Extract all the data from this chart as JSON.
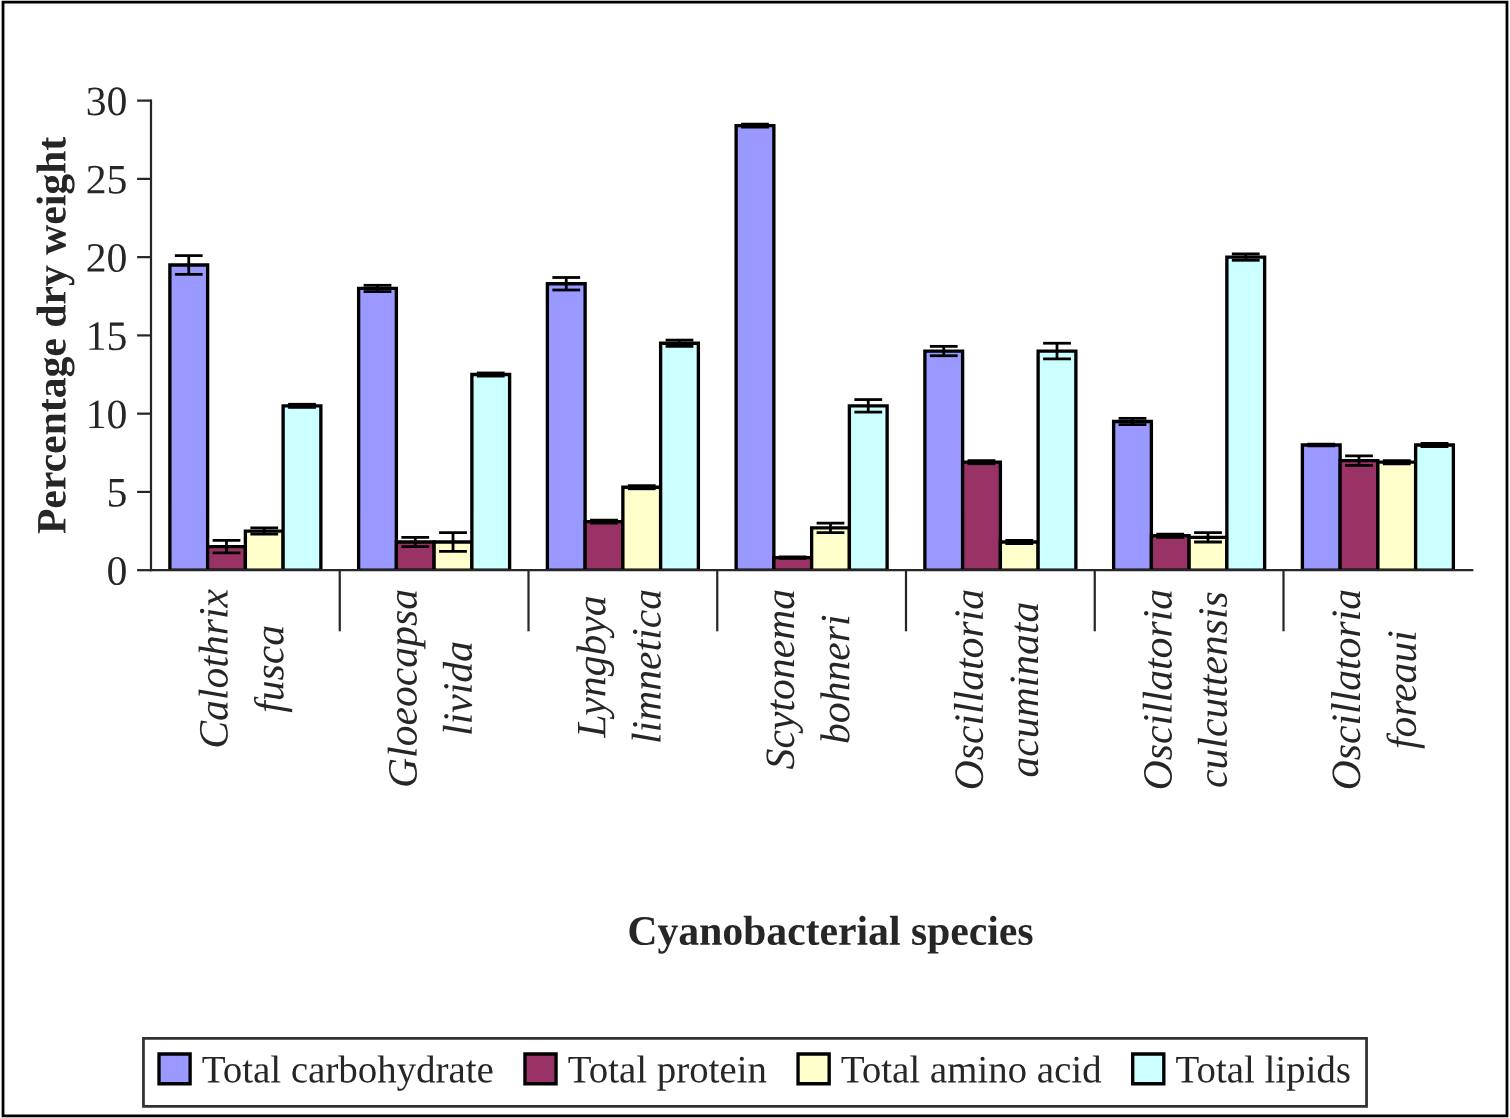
{
  "chart_data": {
    "type": "bar",
    "xlabel": "Cyanobacterial species",
    "ylabel": "Percentage dry weight",
    "categories": [
      "Calothrix\nfusca",
      "Gloeocapsa\nlivida",
      "Lyngbya\nlimnetica",
      "Scytonema\nbohneri",
      "Oscillatoria\nacuminata",
      "Oscillatoria\nculcuttensis",
      "Oscillatoria\nforeaui"
    ],
    "series": [
      {
        "name": "Total carbohydrate",
        "color": "#9999ff",
        "values": [
          19.5,
          18,
          18.3,
          28.4,
          14,
          9.5,
          8
        ],
        "errors": [
          0.6,
          0.2,
          0.4,
          0.1,
          0.3,
          0.2,
          0.05
        ]
      },
      {
        "name": "Total protein",
        "color": "#993366",
        "values": [
          1.5,
          1.8,
          3.1,
          0.8,
          6.9,
          2.2,
          7
        ],
        "errors": [
          0.4,
          0.3,
          0.1,
          0.05,
          0.1,
          0.1,
          0.3
        ]
      },
      {
        "name": "Total amino acid",
        "color": "#ffffcc",
        "values": [
          2.5,
          1.8,
          5.3,
          2.7,
          1.8,
          2.1,
          6.9
        ],
        "errors": [
          0.2,
          0.6,
          0.1,
          0.3,
          0.1,
          0.3,
          0.1
        ]
      },
      {
        "name": "Total lipids",
        "color": "#ccffff",
        "values": [
          10.5,
          12.5,
          14.5,
          10.5,
          14,
          20,
          8
        ],
        "errors": [
          0.1,
          0.1,
          0.2,
          0.4,
          0.5,
          0.2,
          0.1
        ]
      }
    ],
    "ylim": [
      0,
      30
    ],
    "yticks": [
      0,
      5,
      10,
      15,
      20,
      25,
      30
    ],
    "grid": false,
    "legend": "bottom"
  }
}
